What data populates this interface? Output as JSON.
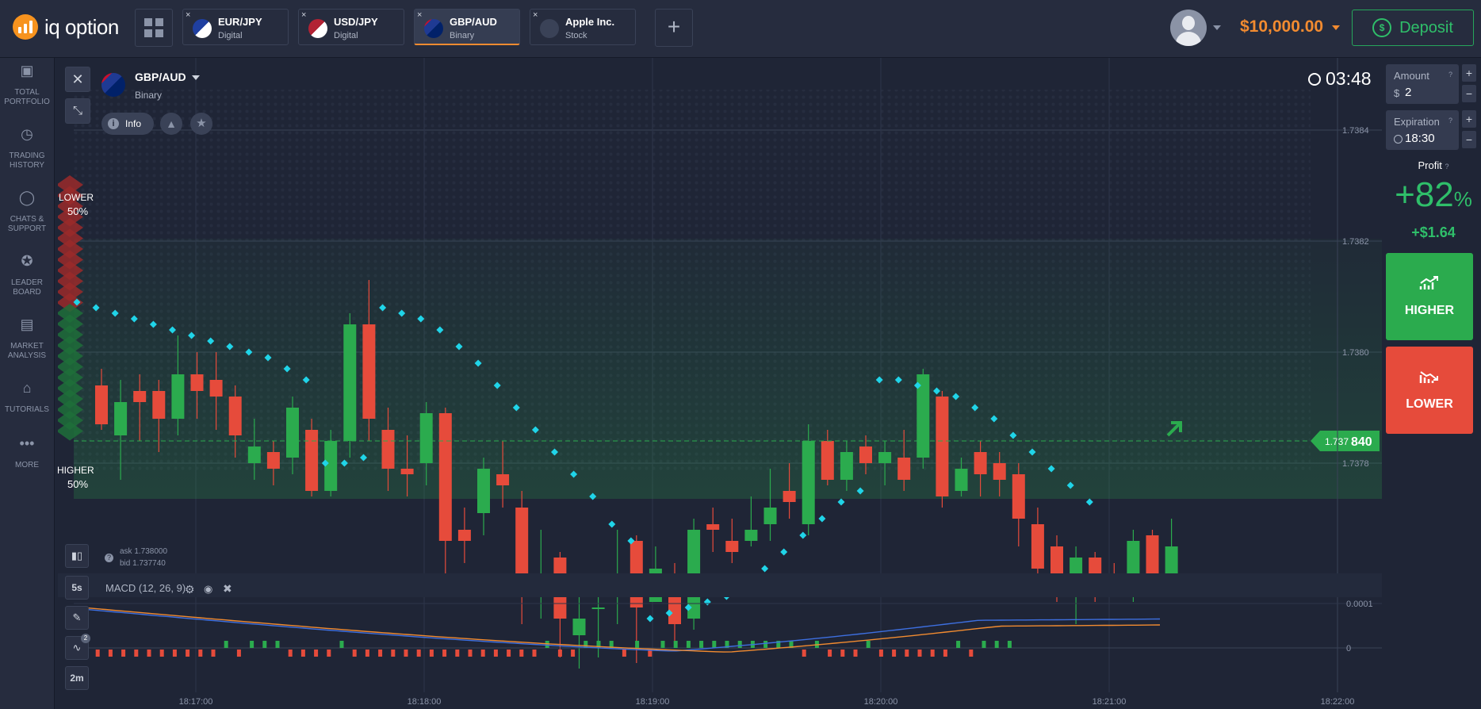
{
  "brand": {
    "name": "iq option"
  },
  "tabs": [
    {
      "name": "EUR/JPY",
      "type": "Digital",
      "active": false,
      "flag": "eur-jpy"
    },
    {
      "name": "USD/JPY",
      "type": "Digital",
      "active": false,
      "flag": "usd-jpy"
    },
    {
      "name": "GBP/AUD",
      "type": "Binary",
      "active": true,
      "flag": "gbp-aud"
    },
    {
      "name": "Apple Inc.",
      "type": "Stock",
      "active": false,
      "flag": "apple"
    }
  ],
  "tab_close": "×",
  "add_tab": "+",
  "account": {
    "balance": "$10,000.00",
    "deposit_label": "Deposit"
  },
  "nav": [
    {
      "line1": "TOTAL",
      "line2": "PORTFOLIO",
      "icon": "briefcase-icon"
    },
    {
      "line1": "TRADING",
      "line2": "HISTORY",
      "icon": "history-icon"
    },
    {
      "line1": "CHATS &",
      "line2": "SUPPORT",
      "icon": "chat-icon"
    },
    {
      "line1": "LEADER",
      "line2": "BOARD",
      "icon": "leaderboard-icon"
    },
    {
      "line1": "MARKET",
      "line2": "ANALYSIS",
      "icon": "newspaper-icon"
    },
    {
      "line1": "TUTORIALS",
      "line2": "",
      "icon": "graduation-icon"
    },
    {
      "line1": "MORE",
      "line2": "",
      "icon": "more-icon"
    }
  ],
  "asset": {
    "name": "GBP/AUD",
    "type": "Binary",
    "info_label": "Info"
  },
  "timer": "03:48",
  "sentiment": {
    "lower_label": "LOWER",
    "lower_pct": "50%",
    "higher_label": "HIGHER",
    "higher_pct": "50%"
  },
  "quote": {
    "ask": "ask 1.738000",
    "bid": "bid 1.737740"
  },
  "current_price": {
    "prefix": "1.737",
    "suffix": "840",
    "value": 1.73784
  },
  "indicator": {
    "label": "MACD (12, 26, 9)"
  },
  "tools": {
    "interval": "5s",
    "timeframe": "2m",
    "indicator_count": "2"
  },
  "trade": {
    "amount_label": "Amount",
    "amount_value": "2",
    "currency": "$",
    "expiration_label": "Expiration",
    "expiration_value": "18:30",
    "profit_label": "Profit",
    "profit_pct": "+82",
    "pct_sign": "%",
    "profit_amount": "+$1.64",
    "higher_label": "HIGHER",
    "lower_label": "LOWER",
    "plus": "+",
    "minus": "−"
  },
  "chart_data": {
    "type": "candlestick",
    "y_ticks": [
      "1.7384",
      "1.7382",
      "1.7380",
      "1.7378"
    ],
    "y_values": [
      1.7384,
      1.7382,
      1.738,
      1.7378
    ],
    "x_ticks": [
      "18:17:00",
      "18:18:00",
      "18:19:00",
      "18:20:00",
      "18:21:00",
      "18:22:00"
    ],
    "macd_ticks": [
      "0.0001",
      "0"
    ],
    "candles": [
      [
        1.73787,
        1.73794,
        1.73797,
        1.73786,
        "r"
      ],
      [
        1.73785,
        1.73791,
        1.73795,
        1.73777,
        "g"
      ],
      [
        1.73791,
        1.73793,
        1.73796,
        1.73784,
        "r"
      ],
      [
        1.73793,
        1.73788,
        1.73795,
        1.73782,
        "r"
      ],
      [
        1.73788,
        1.73796,
        1.73803,
        1.73785,
        "g"
      ],
      [
        1.73796,
        1.73793,
        1.738,
        1.73788,
        "r"
      ],
      [
        1.73795,
        1.73792,
        1.738,
        1.73786,
        "r"
      ],
      [
        1.73792,
        1.73785,
        1.73794,
        1.73781,
        "r"
      ],
      [
        1.7378,
        1.73783,
        1.73788,
        1.73777,
        "g"
      ],
      [
        1.73782,
        1.73779,
        1.73784,
        1.73776,
        "r"
      ],
      [
        1.73781,
        1.7379,
        1.73792,
        1.73778,
        "g"
      ],
      [
        1.73786,
        1.73775,
        1.73788,
        1.73774,
        "r"
      ],
      [
        1.73775,
        1.73784,
        1.73786,
        1.73774,
        "g"
      ],
      [
        1.73784,
        1.73805,
        1.73807,
        1.73781,
        "g"
      ],
      [
        1.73805,
        1.73788,
        1.73813,
        1.73784,
        "r"
      ],
      [
        1.73786,
        1.73779,
        1.7379,
        1.73775,
        "r"
      ],
      [
        1.73779,
        1.73778,
        1.73785,
        1.73774,
        "r"
      ],
      [
        1.7378,
        1.73789,
        1.73791,
        1.73776,
        "g"
      ],
      [
        1.73789,
        1.73766,
        1.7379,
        1.7376,
        "r"
      ],
      [
        1.73768,
        1.73766,
        1.73772,
        1.73762,
        "r"
      ],
      [
        1.73771,
        1.73779,
        1.73781,
        1.73767,
        "g"
      ],
      [
        1.73778,
        1.73776,
        1.73784,
        1.73772,
        "r"
      ],
      [
        1.73772,
        1.7376,
        1.73775,
        1.73751,
        "r"
      ],
      [
        1.73758,
        1.73757,
        1.73768,
        1.73752,
        "g"
      ],
      [
        1.73763,
        1.73752,
        1.73764,
        1.73745,
        "r"
      ],
      [
        1.73749,
        1.73752,
        1.73757,
        1.73743,
        "g"
      ],
      [
        1.73754,
        1.73754,
        1.73758,
        1.73745,
        "g"
      ],
      [
        1.73757,
        1.73757,
        1.73768,
        1.73751,
        "g"
      ],
      [
        1.73766,
        1.73754,
        1.73767,
        1.73744,
        "r"
      ],
      [
        1.73755,
        1.73761,
        1.73765,
        1.73755,
        "g"
      ],
      [
        1.73758,
        1.73751,
        1.73762,
        1.73748,
        "r"
      ],
      [
        1.73752,
        1.73768,
        1.7377,
        1.7375,
        "g"
      ],
      [
        1.73769,
        1.73768,
        1.73772,
        1.73764,
        "r"
      ],
      [
        1.73766,
        1.73764,
        1.7377,
        1.73762,
        "r"
      ],
      [
        1.73766,
        1.73768,
        1.73774,
        1.73765,
        "g"
      ],
      [
        1.73769,
        1.73772,
        1.73779,
        1.73766,
        "g"
      ],
      [
        1.73775,
        1.73773,
        1.7378,
        1.7377,
        "r"
      ],
      [
        1.73769,
        1.73784,
        1.73787,
        1.73767,
        "g"
      ],
      [
        1.73784,
        1.73777,
        1.73786,
        1.73776,
        "r"
      ],
      [
        1.73777,
        1.73782,
        1.73784,
        1.73775,
        "g"
      ],
      [
        1.73783,
        1.7378,
        1.73785,
        1.73778,
        "r"
      ],
      [
        1.7378,
        1.73782,
        1.73784,
        1.73776,
        "g"
      ],
      [
        1.73781,
        1.73777,
        1.73786,
        1.73775,
        "r"
      ],
      [
        1.73781,
        1.73796,
        1.73797,
        1.73779,
        "g"
      ],
      [
        1.73792,
        1.73774,
        1.73793,
        1.73772,
        "r"
      ],
      [
        1.73775,
        1.73779,
        1.73781,
        1.73774,
        "g"
      ],
      [
        1.73782,
        1.73778,
        1.73784,
        1.73774,
        "r"
      ],
      [
        1.7378,
        1.73777,
        1.73782,
        1.73774,
        "r"
      ],
      [
        1.73778,
        1.7377,
        1.7378,
        1.73765,
        "r"
      ],
      [
        1.73769,
        1.73761,
        1.73772,
        1.73757,
        "r"
      ],
      [
        1.73765,
        1.73758,
        1.73767,
        1.73755,
        "r"
      ],
      [
        1.7376,
        1.73763,
        1.73765,
        1.73751,
        "g"
      ],
      [
        1.73763,
        1.73757,
        1.73764,
        1.73755,
        "r"
      ],
      [
        1.7376,
        1.73758,
        1.73762,
        1.73756,
        "r"
      ],
      [
        1.73757,
        1.73766,
        1.73768,
        1.73755,
        "g"
      ],
      [
        1.73767,
        1.7376,
        1.73768,
        1.73758,
        "r"
      ],
      [
        1.7376,
        1.73765,
        1.7377,
        1.73759,
        "g"
      ]
    ],
    "parabolic_sar": [
      [
        0,
        1.73809
      ],
      [
        1,
        1.73808
      ],
      [
        2,
        1.73807
      ],
      [
        3,
        1.73806
      ],
      [
        4,
        1.73805
      ],
      [
        5,
        1.73804
      ],
      [
        6,
        1.73803
      ],
      [
        7,
        1.73802
      ],
      [
        8,
        1.73801
      ],
      [
        9,
        1.738
      ],
      [
        10,
        1.73799
      ],
      [
        11,
        1.73797
      ],
      [
        12,
        1.73795
      ],
      [
        13,
        1.7378
      ],
      [
        14,
        1.7378
      ],
      [
        15,
        1.73781
      ],
      [
        16,
        1.73808
      ],
      [
        17,
        1.73807
      ],
      [
        18,
        1.73806
      ],
      [
        19,
        1.73804
      ],
      [
        20,
        1.73801
      ],
      [
        21,
        1.73798
      ],
      [
        22,
        1.73794
      ],
      [
        23,
        1.7379
      ],
      [
        24,
        1.73786
      ],
      [
        25,
        1.73782
      ],
      [
        26,
        1.73778
      ],
      [
        27,
        1.73774
      ],
      [
        28,
        1.73769
      ],
      [
        29,
        1.73766
      ],
      [
        30,
        1.73752
      ],
      [
        31,
        1.73753
      ],
      [
        32,
        1.73754
      ],
      [
        33,
        1.73755
      ],
      [
        34,
        1.73756
      ],
      [
        35,
        1.73758
      ],
      [
        36,
        1.73761
      ],
      [
        37,
        1.73764
      ],
      [
        38,
        1.73767
      ],
      [
        39,
        1.7377
      ],
      [
        40,
        1.73773
      ],
      [
        41,
        1.73775
      ],
      [
        42,
        1.73795
      ],
      [
        43,
        1.73795
      ],
      [
        44,
        1.73794
      ],
      [
        45,
        1.73793
      ],
      [
        46,
        1.73792
      ],
      [
        47,
        1.7379
      ],
      [
        48,
        1.73788
      ],
      [
        49,
        1.73785
      ],
      [
        50,
        1.73782
      ],
      [
        51,
        1.73779
      ],
      [
        52,
        1.73776
      ],
      [
        53,
        1.73773
      ]
    ],
    "macd_hist": [
      -1,
      -1,
      -1,
      -1,
      -1,
      -1,
      -1,
      -1,
      -1,
      -1,
      -1,
      1,
      -1,
      1,
      1,
      1,
      -1,
      -1,
      -1,
      -1,
      1,
      -1,
      -1,
      -1,
      -1,
      -1,
      -1,
      -1,
      -1,
      -1,
      -1,
      -1,
      -1,
      -1,
      -1,
      -1,
      1,
      -1,
      -1,
      1,
      1,
      1,
      -1,
      1,
      -1,
      1,
      1,
      1,
      1,
      1,
      1,
      1,
      1,
      1,
      1,
      1,
      -1,
      1,
      -1,
      -1,
      -1,
      1,
      -1,
      -1,
      -1,
      -1,
      -1,
      -1,
      1,
      -1,
      1,
      1,
      1
    ]
  },
  "colors": {
    "up": "#2bab4e",
    "down": "#e64b3b",
    "accent": "#f28b30",
    "sar": "#20d4e8",
    "price": "#2bab4e"
  }
}
